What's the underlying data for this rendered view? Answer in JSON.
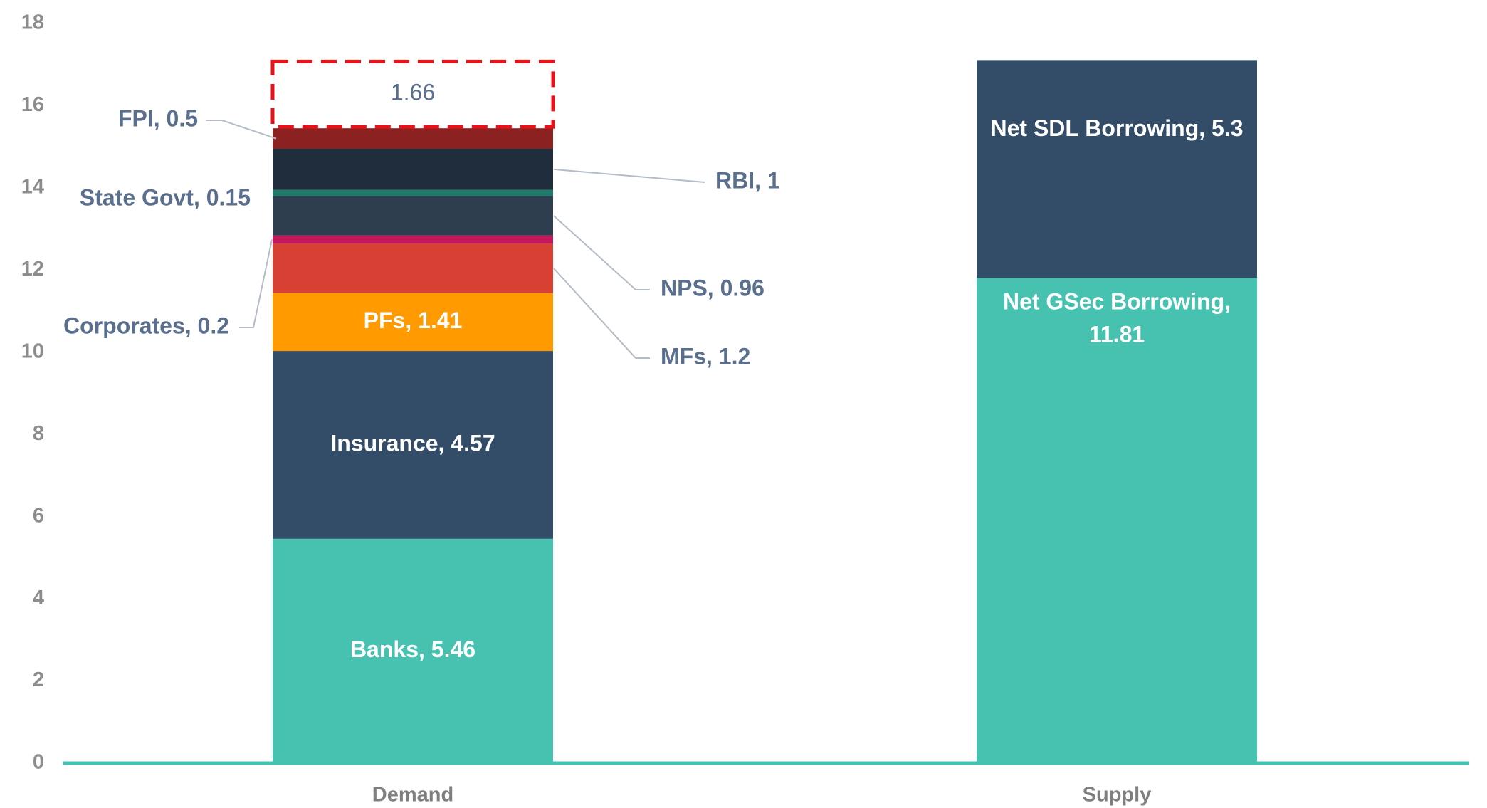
{
  "chart_data": {
    "type": "bar",
    "stacked": true,
    "categories": [
      "Demand",
      "Supply"
    ],
    "ylim": [
      0,
      18
    ],
    "yticks": [
      0,
      2,
      4,
      6,
      8,
      10,
      12,
      14,
      16,
      18
    ],
    "grid": false,
    "legend": "none",
    "stacks": [
      {
        "category": "Demand",
        "segments": [
          {
            "name": "Banks",
            "value": 5.46,
            "color": "#48c2b0",
            "label": "Banks, 5.46",
            "label_pos": "inside"
          },
          {
            "name": "Insurance",
            "value": 4.57,
            "color": "#334d68",
            "label": "Insurance, 4.57",
            "label_pos": "inside"
          },
          {
            "name": "PFs",
            "value": 1.41,
            "color": "#ff9a00",
            "label": "PFs, 1.41",
            "label_pos": "inside"
          },
          {
            "name": "MFs",
            "value": 1.2,
            "color": "#d64133",
            "label": "MFs, 1.2",
            "label_pos": "right"
          },
          {
            "name": "Corporates",
            "value": 0.2,
            "color": "#c2185b",
            "label": "Corporates, 0.2",
            "label_pos": "left"
          },
          {
            "name": "NPS",
            "value": 0.96,
            "color": "#2e3e4f",
            "label": "NPS, 0.96",
            "label_pos": "right"
          },
          {
            "name": "State Govt",
            "value": 0.15,
            "color": "#1f7a6a",
            "label": "State Govt, 0.15",
            "label_pos": "left"
          },
          {
            "name": "RBI",
            "value": 1,
            "color": "#1f2d3d",
            "label": "RBI, 1",
            "label_pos": "right"
          },
          {
            "name": "FPI",
            "value": 0.5,
            "color": "#8b2121",
            "label": "FPI, 0.5",
            "label_pos": "left"
          }
        ],
        "gap": {
          "value": 1.66,
          "label": "1.66",
          "border_color": "#e8111a"
        }
      },
      {
        "category": "Supply",
        "segments": [
          {
            "name": "Net GSec Borrowing",
            "value": 11.81,
            "color": "#48c2b0",
            "label": "Net GSec Borrowing,\n11.81",
            "label_pos": "inside-top"
          },
          {
            "name": "Net SDL Borrowing",
            "value": 5.3,
            "color": "#334d68",
            "label": "Net SDL Borrowing, 5.3",
            "label_pos": "inside"
          }
        ]
      }
    ],
    "axis_color": "#48c2b0"
  }
}
